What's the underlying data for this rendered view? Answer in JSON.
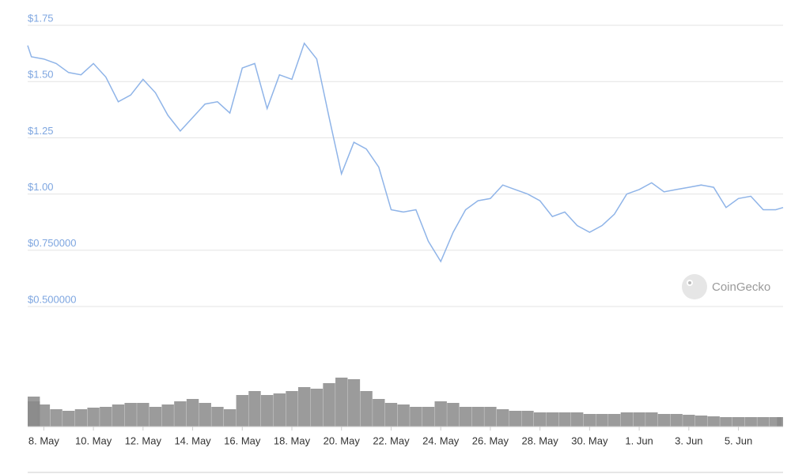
{
  "chart_data": {
    "type": "line",
    "watermark": "CoinGecko",
    "color": "#8fb4e8",
    "ylim": [
      0.5,
      1.75
    ],
    "yticks": [
      {
        "value": 0.5,
        "label": "$0.500000"
      },
      {
        "value": 0.75,
        "label": "$0.750000"
      },
      {
        "value": 1.0,
        "label": "$1.00"
      },
      {
        "value": 1.25,
        "label": "$1.25"
      },
      {
        "value": 1.5,
        "label": "$1.50"
      },
      {
        "value": 1.75,
        "label": "$1.75"
      }
    ],
    "grid": true,
    "xlim": [
      7.35,
      37.8
    ],
    "xticks": [
      {
        "value": 8,
        "label": "8. May"
      },
      {
        "value": 10,
        "label": "10. May"
      },
      {
        "value": 12,
        "label": "12. May"
      },
      {
        "value": 14,
        "label": "14. May"
      },
      {
        "value": 16,
        "label": "16. May"
      },
      {
        "value": 18,
        "label": "18. May"
      },
      {
        "value": 20,
        "label": "20. May"
      },
      {
        "value": 22,
        "label": "22. May"
      },
      {
        "value": 24,
        "label": "24. May"
      },
      {
        "value": 26,
        "label": "26. May"
      },
      {
        "value": 28,
        "label": "28. May"
      },
      {
        "value": 30,
        "label": "30. May"
      },
      {
        "value": 32,
        "label": "1. Jun"
      },
      {
        "value": 34,
        "label": "3. Jun"
      },
      {
        "value": 36,
        "label": "5. Jun"
      }
    ],
    "x": [
      7.35,
      7.5,
      8,
      8.5,
      9,
      9.5,
      10,
      10.5,
      11,
      11.5,
      12,
      12.5,
      13,
      13.5,
      14,
      14.5,
      15,
      15.5,
      16,
      16.5,
      17,
      17.5,
      18,
      18.5,
      19,
      19.5,
      20,
      20.5,
      21,
      21.5,
      22,
      22.5,
      23,
      23.5,
      24,
      24.5,
      25,
      25.5,
      26,
      26.5,
      27,
      27.5,
      28,
      28.5,
      29,
      29.5,
      30,
      30.5,
      31,
      31.5,
      32,
      32.5,
      33,
      33.5,
      34,
      34.5,
      35,
      35.5,
      36,
      36.5,
      37,
      37.5,
      37.8
    ],
    "values": [
      1.66,
      1.61,
      1.6,
      1.58,
      1.54,
      1.53,
      1.58,
      1.52,
      1.41,
      1.44,
      1.51,
      1.45,
      1.35,
      1.28,
      1.34,
      1.4,
      1.41,
      1.36,
      1.56,
      1.58,
      1.38,
      1.53,
      1.51,
      1.67,
      1.6,
      1.34,
      1.09,
      1.23,
      1.2,
      1.12,
      0.93,
      0.92,
      0.93,
      0.79,
      0.7,
      0.83,
      0.93,
      0.97,
      0.98,
      1.04,
      1.02,
      1.0,
      0.97,
      0.9,
      0.92,
      0.86,
      0.83,
      0.86,
      0.91,
      1.0,
      1.02,
      1.05,
      1.01,
      1.02,
      1.03,
      1.04,
      1.03,
      0.94,
      0.98,
      0.99,
      0.93,
      0.93,
      0.94
    ],
    "volume": {
      "color": "#8a8a8a",
      "values": [
        38,
        32,
        28,
        22,
        20,
        22,
        24,
        25,
        28,
        30,
        30,
        25,
        28,
        32,
        35,
        30,
        25,
        22,
        40,
        45,
        40,
        42,
        45,
        50,
        48,
        55,
        62,
        60,
        45,
        35,
        30,
        28,
        25,
        25,
        32,
        30,
        25,
        25,
        25,
        22,
        20,
        20,
        18,
        18,
        18,
        18,
        16,
        16,
        16,
        18,
        18,
        18,
        16,
        16,
        15,
        14,
        13,
        12,
        12,
        12,
        12,
        12,
        12
      ]
    }
  }
}
